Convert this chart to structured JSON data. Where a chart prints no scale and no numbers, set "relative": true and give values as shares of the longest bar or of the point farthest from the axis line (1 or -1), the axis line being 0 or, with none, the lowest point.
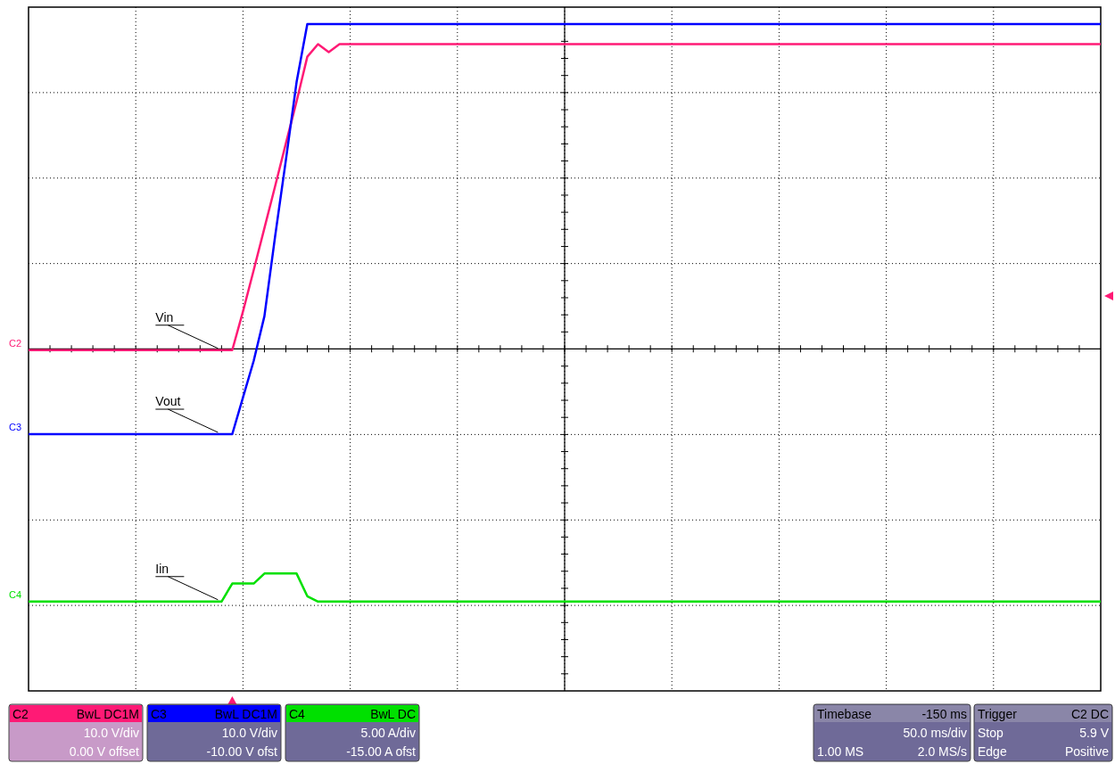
{
  "chart_data": {
    "type": "line",
    "relative": true,
    "grid": true,
    "marker": "none",
    "line_style": "solid",
    "ref_lines": [
      {
        "axis": "y",
        "value": 0.513,
        "color": "#000000"
      }
    ],
    "categories": [
      null,
      null,
      null,
      null,
      null,
      null,
      null,
      null,
      null,
      null,
      null,
      null,
      null,
      null,
      null,
      null,
      null,
      null,
      null,
      null,
      null,
      null,
      null,
      null,
      null,
      null,
      null,
      null,
      null,
      null,
      null,
      null,
      null,
      null,
      null,
      null,
      null,
      null,
      null,
      null,
      null,
      null,
      null,
      null,
      null,
      null,
      null,
      null,
      null,
      null,
      null,
      null,
      null,
      null,
      null,
      null,
      null,
      null,
      null,
      null,
      null,
      null,
      null,
      null,
      null,
      null,
      null,
      null,
      null,
      null,
      null,
      null,
      null,
      null,
      null,
      null,
      null,
      null,
      null,
      null,
      null,
      null,
      null,
      null,
      null,
      null,
      null,
      null,
      null,
      null,
      null,
      null,
      null,
      null,
      null,
      null,
      null,
      null,
      null,
      null,
      null
    ],
    "series": [
      {
        "name": "Vin",
        "color": "#ff1a75",
        "values": [
          0.511,
          0.511,
          0.511,
          0.511,
          0.511,
          0.511,
          0.511,
          0.511,
          0.511,
          0.511,
          0.511,
          0.511,
          0.511,
          0.511,
          0.511,
          0.511,
          0.511,
          0.511,
          0.511,
          0.511,
          0.569,
          0.631,
          0.694,
          0.757,
          0.821,
          0.884,
          0.951,
          0.97,
          0.958,
          0.97,
          0.97,
          0.97,
          0.97,
          0.97,
          0.97,
          0.97,
          0.97,
          0.97,
          0.97,
          0.97,
          0.97,
          0.97,
          0.97,
          0.97,
          0.97,
          0.97,
          0.97,
          0.97,
          0.97,
          0.97,
          0.97,
          0.97,
          0.97,
          0.97,
          0.97,
          0.97,
          0.97,
          0.97,
          0.97,
          0.97,
          0.97,
          0.97,
          0.97,
          0.97,
          0.97,
          0.97,
          0.97,
          0.97,
          0.97,
          0.97,
          0.97,
          0.97,
          0.97,
          0.97,
          0.97,
          0.97,
          0.97,
          0.97,
          0.97,
          0.97,
          0.97,
          0.97,
          0.97,
          0.97,
          0.97,
          0.97,
          0.97,
          0.97,
          0.97,
          0.97,
          0.97,
          0.97,
          0.97,
          0.97,
          0.97,
          0.97,
          0.97,
          0.97,
          0.97,
          0.97,
          0.97
        ]
      },
      {
        "name": "Vout",
        "color": "#0000ff",
        "values": [
          0.385,
          0.385,
          0.385,
          0.385,
          0.385,
          0.385,
          0.385,
          0.385,
          0.385,
          0.385,
          0.385,
          0.385,
          0.385,
          0.385,
          0.385,
          0.385,
          0.385,
          0.385,
          0.385,
          0.385,
          0.44,
          0.495,
          0.562,
          0.682,
          0.796,
          0.913,
          1,
          1,
          1,
          1,
          1,
          1,
          1,
          1,
          1,
          1,
          1,
          1,
          1,
          1,
          1,
          1,
          1,
          1,
          1,
          1,
          1,
          1,
          1,
          1,
          1,
          1,
          1,
          1,
          1,
          1,
          1,
          1,
          1,
          1,
          1,
          1,
          1,
          1,
          1,
          1,
          1,
          1,
          1,
          1,
          1,
          1,
          1,
          1,
          1,
          1,
          1,
          1,
          1,
          1,
          1,
          1,
          1,
          1,
          1,
          1,
          1,
          1,
          1,
          1,
          1,
          1,
          1,
          1,
          1,
          1,
          1,
          1,
          1,
          1,
          1
        ]
      },
      {
        "name": "Iin",
        "color": "#00e000",
        "values": [
          0.134,
          0.134,
          0.134,
          0.134,
          0.134,
          0.134,
          0.134,
          0.134,
          0.134,
          0.134,
          0.134,
          0.134,
          0.134,
          0.134,
          0.134,
          0.134,
          0.134,
          0.134,
          0.134,
          0.161,
          0.161,
          0.161,
          0.176,
          0.176,
          0.176,
          0.176,
          0.142,
          0.134,
          0.134,
          0.134,
          0.134,
          0.134,
          0.134,
          0.134,
          0.134,
          0.134,
          0.134,
          0.134,
          0.134,
          0.134,
          0.134,
          0.134,
          0.134,
          0.134,
          0.134,
          0.134,
          0.134,
          0.134,
          0.134,
          0.134,
          0.134,
          0.134,
          0.134,
          0.134,
          0.134,
          0.134,
          0.134,
          0.134,
          0.134,
          0.134,
          0.134,
          0.134,
          0.134,
          0.134,
          0.134,
          0.134,
          0.134,
          0.134,
          0.134,
          0.134,
          0.134,
          0.134,
          0.134,
          0.134,
          0.134,
          0.134,
          0.134,
          0.134,
          0.134,
          0.134,
          0.134,
          0.134,
          0.134,
          0.134,
          0.134,
          0.134,
          0.134,
          0.134,
          0.134,
          0.134,
          0.134,
          0.134,
          0.134,
          0.134,
          0.134,
          0.134,
          0.134,
          0.134,
          0.134,
          0.134,
          0.134
        ]
      }
    ],
    "annotations": [
      "C2",
      "C3",
      "C4",
      "C2\tBwL DC1M\n\t10.0 V/div\n\t0.00 V offset",
      "C3\tBwL DC1M\n\t10.0 V/div\n\t-10.00 V ofst",
      "C4\tBwL DC\n\t5.00 A/div\n\t-15.00 A ofst",
      "Timebase\t-150 ms\n\t50.0 ms/div\n1.00 MS\t2.0 MS/s",
      "Trigger\tC2 DC\nStop\t5.9 V\nEdge\tPositive"
    ]
  }
}
